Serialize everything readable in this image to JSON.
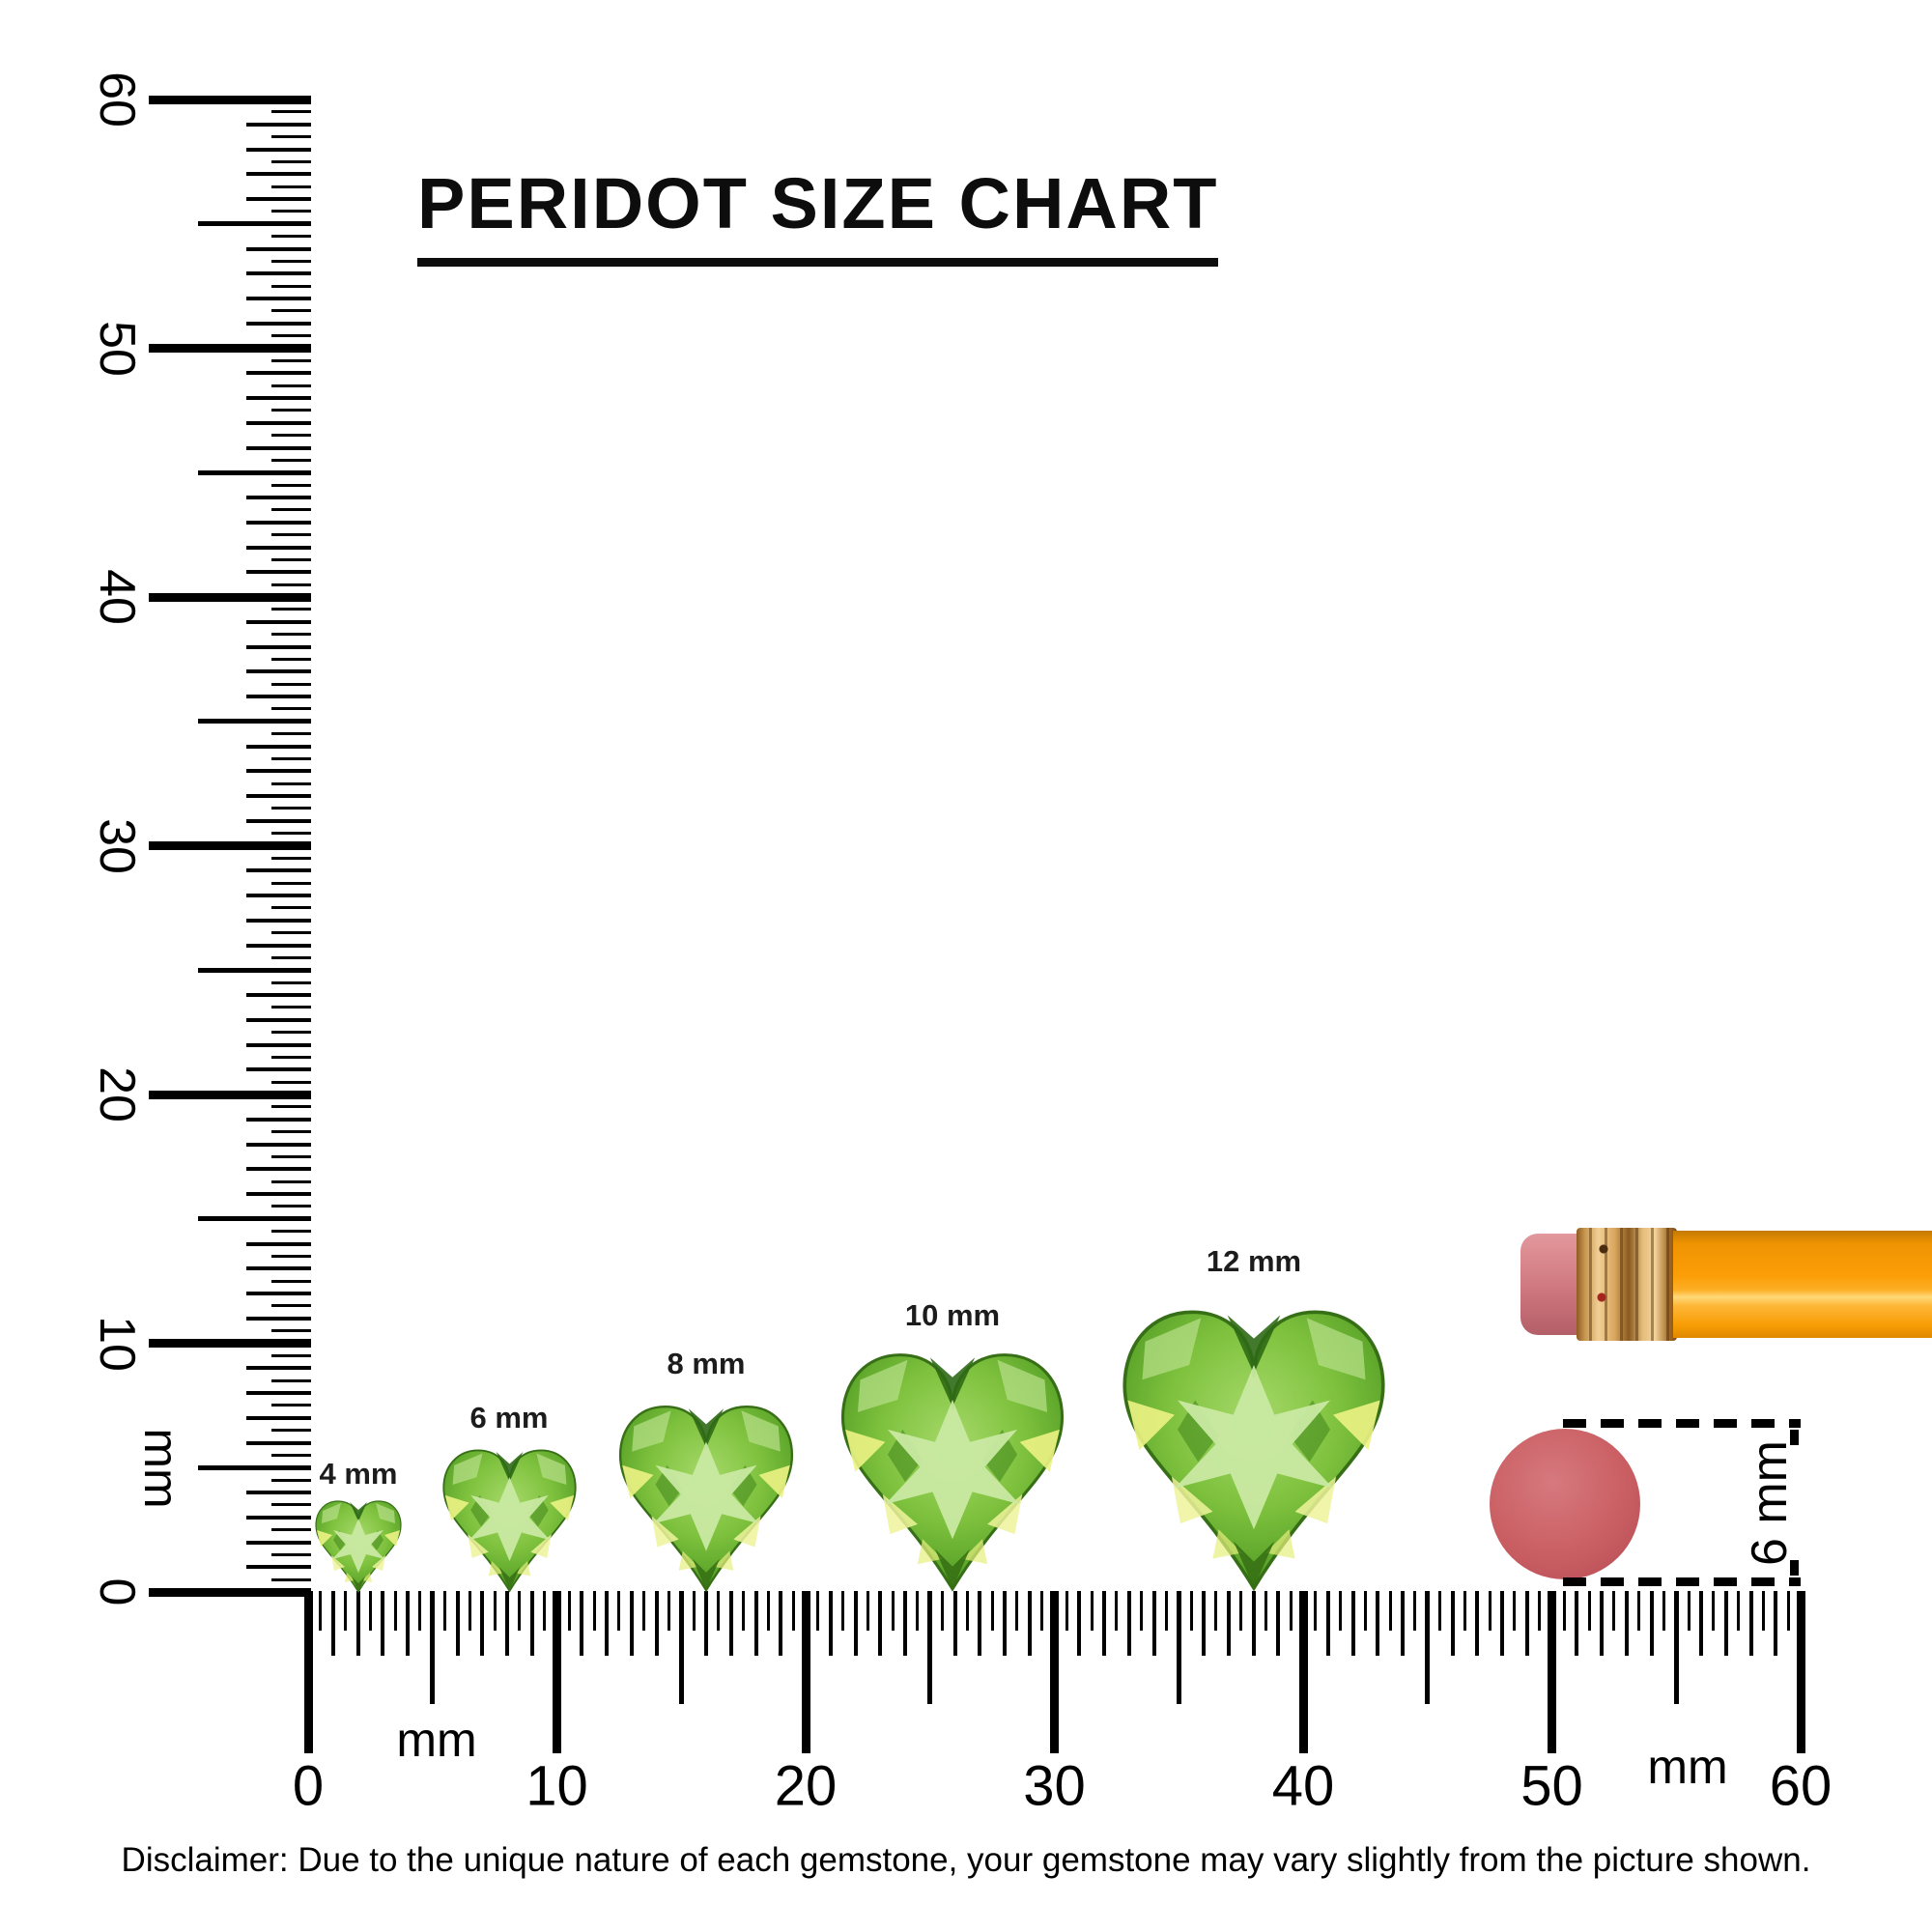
{
  "title": "PERIDOT SIZE CHART",
  "rulers": {
    "vertical": {
      "labels": [
        "0",
        "10",
        "20",
        "30",
        "40",
        "50",
        "60"
      ],
      "unit_label": "mm"
    },
    "horizontal": {
      "labels": [
        "0",
        "10",
        "20",
        "30",
        "40",
        "50",
        "60"
      ],
      "unit_label_left": "mm",
      "unit_label_right": "mm"
    }
  },
  "gems": [
    {
      "label": "4 mm",
      "size_mm": 4
    },
    {
      "label": "6 mm",
      "size_mm": 6
    },
    {
      "label": "8 mm",
      "size_mm": 8
    },
    {
      "label": "10 mm",
      "size_mm": 10
    },
    {
      "label": "12 mm",
      "size_mm": 12
    }
  ],
  "gem_palette": {
    "base": "#7fc23e",
    "light_facet": "#c9e9a2",
    "dark_facet": "#2f6a15",
    "glint": "#ecf384",
    "edge": "#376f17"
  },
  "reference_objects": {
    "pencil": {
      "body_color": "#fb9e06",
      "ferrule_color": "#d9a75f",
      "eraser_color": "#d8868b"
    },
    "round_eraser": {
      "color": "#ca5f63",
      "dimension_label": "6 mm"
    }
  },
  "disclaimer": "Disclaimer: Due to the unique nature of each gemstone, your gemstone may vary slightly from the picture shown."
}
